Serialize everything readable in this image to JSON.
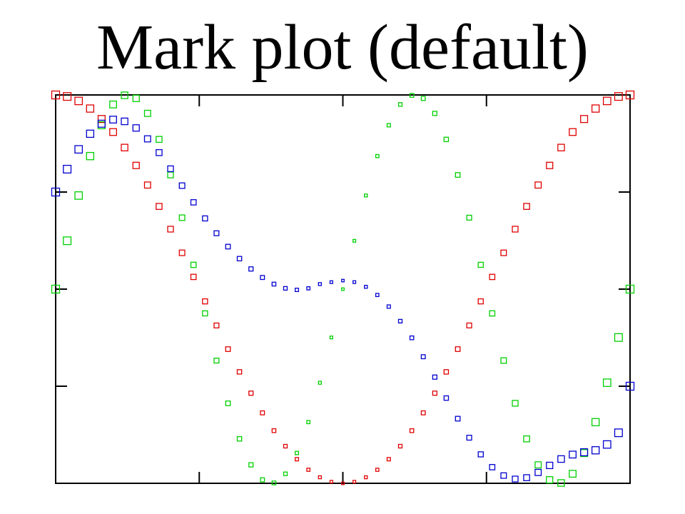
{
  "chart_data": {
    "type": "scatter",
    "title": "Mark plot (default)",
    "xlabel": "",
    "ylabel": "",
    "xlim": [
      0,
      1
    ],
    "ylim": [
      -1,
      1
    ],
    "grid": false,
    "legend": "none",
    "marker": "square",
    "x_ticks": [
      0,
      0.25,
      0.5,
      0.75,
      1
    ],
    "y_ticks": [
      -1,
      -0.5,
      0,
      0.5,
      1
    ],
    "series": [
      {
        "color": "#e00000",
        "x": [
          0,
          0.02,
          0.04,
          0.06,
          0.08,
          0.1,
          0.12,
          0.14,
          0.16,
          0.18,
          0.2,
          0.22,
          0.24,
          0.26,
          0.28,
          0.3,
          0.32,
          0.34,
          0.36,
          0.38,
          0.4,
          0.42,
          0.44,
          0.46,
          0.48,
          0.5,
          0.52,
          0.54,
          0.56,
          0.58,
          0.6,
          0.62,
          0.64,
          0.66,
          0.68,
          0.7,
          0.72,
          0.74,
          0.76,
          0.78,
          0.8,
          0.82,
          0.84,
          0.86,
          0.88,
          0.9,
          0.92,
          0.94,
          0.96,
          0.98,
          1
        ],
        "y": [
          1,
          0.992,
          0.969,
          0.93,
          0.876,
          0.809,
          0.729,
          0.637,
          0.536,
          0.426,
          0.309,
          0.187,
          0.063,
          -0.063,
          -0.187,
          -0.309,
          -0.426,
          -0.536,
          -0.637,
          -0.729,
          -0.809,
          -0.876,
          -0.93,
          -0.969,
          -0.992,
          -1,
          -0.992,
          -0.969,
          -0.93,
          -0.876,
          -0.809,
          -0.729,
          -0.637,
          -0.536,
          -0.426,
          -0.309,
          -0.187,
          -0.063,
          0.063,
          0.187,
          0.309,
          0.426,
          0.536,
          0.637,
          0.729,
          0.809,
          0.876,
          0.93,
          0.969,
          0.992,
          1
        ]
      },
      {
        "color": "#00d000",
        "x": [
          0,
          0.02,
          0.04,
          0.06,
          0.08,
          0.1,
          0.12,
          0.14,
          0.16,
          0.18,
          0.2,
          0.22,
          0.24,
          0.26,
          0.28,
          0.3,
          0.32,
          0.34,
          0.36,
          0.38,
          0.4,
          0.42,
          0.44,
          0.46,
          0.48,
          0.5,
          0.52,
          0.54,
          0.56,
          0.58,
          0.6,
          0.62,
          0.64,
          0.66,
          0.68,
          0.7,
          0.72,
          0.74,
          0.76,
          0.78,
          0.8,
          0.82,
          0.84,
          0.86,
          0.88,
          0.9,
          0.92,
          0.94,
          0.96,
          0.98,
          1
        ],
        "y": [
          0,
          0.249,
          0.482,
          0.685,
          0.844,
          0.951,
          0.998,
          0.982,
          0.905,
          0.771,
          0.588,
          0.368,
          0.125,
          -0.125,
          -0.368,
          -0.588,
          -0.771,
          -0.905,
          -0.982,
          -0.998,
          -0.951,
          -0.844,
          -0.685,
          -0.482,
          -0.249,
          0,
          0.249,
          0.482,
          0.685,
          0.844,
          0.951,
          0.998,
          0.982,
          0.905,
          0.771,
          0.588,
          0.368,
          0.125,
          -0.125,
          -0.368,
          -0.588,
          -0.771,
          -0.905,
          -0.982,
          -0.998,
          -0.951,
          -0.844,
          -0.685,
          -0.482,
          -0.249,
          0
        ]
      },
      {
        "color": "#0000d0",
        "x": [
          0,
          0.02,
          0.04,
          0.06,
          0.08,
          0.1,
          0.12,
          0.14,
          0.16,
          0.18,
          0.2,
          0.22,
          0.24,
          0.26,
          0.28,
          0.3,
          0.32,
          0.34,
          0.36,
          0.38,
          0.4,
          0.42,
          0.44,
          0.46,
          0.48,
          0.5,
          0.52,
          0.54,
          0.56,
          0.58,
          0.6,
          0.62,
          0.64,
          0.66,
          0.68,
          0.7,
          0.72,
          0.74,
          0.76,
          0.78,
          0.8,
          0.82,
          0.84,
          0.86,
          0.88,
          0.9,
          0.92,
          0.94,
          0.96,
          0.98,
          1
        ],
        "y": [
          0.5,
          0.618,
          0.72,
          0.8,
          0.852,
          0.873,
          0.864,
          0.83,
          0.774,
          0.703,
          0.62,
          0.533,
          0.447,
          0.364,
          0.288,
          0.219,
          0.157,
          0.104,
          0.06,
          0.026,
          0.004,
          -0.004,
          0.004,
          0.026,
          0.036,
          0.044,
          0.036,
          0.012,
          -0.03,
          -0.09,
          -0.165,
          -0.251,
          -0.348,
          -0.453,
          -0.561,
          -0.667,
          -0.765,
          -0.851,
          -0.917,
          -0.96,
          -0.978,
          -0.971,
          -0.944,
          -0.908,
          -0.875,
          -0.852,
          -0.84,
          -0.83,
          -0.8,
          -0.74,
          -0.5
        ]
      }
    ]
  }
}
